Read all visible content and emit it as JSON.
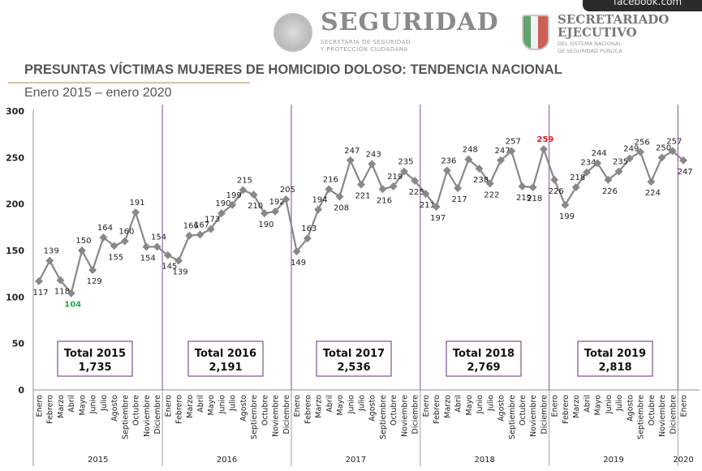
{
  "header": {
    "logo1_title": "SEGURIDAD",
    "logo1_sub1": "SECRETARÍA DE SEGURIDAD",
    "logo1_sub2": "Y PROTECCIÓN CIUDADANA",
    "logo2_title1": "SECRETARIADO",
    "logo2_title2": "EJECUTIVO",
    "logo2_sub1": "DEL SISTEMA NACIONAL",
    "logo2_sub2": "DE SEGURIDAD PÚBLICA",
    "toast": "facebook.com"
  },
  "colors": {
    "line": "#888888",
    "divider": "#9b72b0",
    "min_label": "#2aa84a",
    "max_label": "#e01b24",
    "box_border": "#7a4f94"
  },
  "chart_data": {
    "type": "line",
    "title": "PRESUNTAS VÍCTIMAS MUJERES DE HOMICIDIO DOLOSO: TENDENCIA NACIONAL",
    "subtitle": "Enero 2015 – enero 2020",
    "xlabel": "",
    "ylabel": "",
    "ylim": [
      0,
      300
    ],
    "yticks": [
      0,
      50,
      100,
      150,
      200,
      250,
      300
    ],
    "grid": false,
    "months": [
      "Enero",
      "Febrero",
      "Marzo",
      "Abril",
      "Mayo",
      "Junio",
      "Julio",
      "Agosto",
      "Septiembre",
      "Octubre",
      "Noviembre",
      "Diciembre"
    ],
    "years": [
      {
        "year": "2015",
        "values": [
          117,
          139,
          118,
          104,
          150,
          129,
          164,
          155,
          160,
          191,
          154,
          154
        ],
        "total_label": "Total 2015",
        "total": "1,735"
      },
      {
        "year": "2016",
        "values": [
          145,
          139,
          166,
          167,
          173,
          190,
          199,
          215,
          210,
          190,
          192,
          205
        ],
        "total_label": "Total 2016",
        "total": "2,191"
      },
      {
        "year": "2017",
        "values": [
          149,
          163,
          194,
          216,
          208,
          247,
          221,
          243,
          216,
          219,
          235,
          225
        ],
        "total_label": "Total 2017",
        "total": "2,536"
      },
      {
        "year": "2018",
        "values": [
          211,
          197,
          236,
          217,
          248,
          238,
          222,
          247,
          257,
          219,
          218,
          259
        ],
        "total_label": "Total 2018",
        "total": "2,769"
      },
      {
        "year": "2019",
        "values": [
          226,
          199,
          218,
          234,
          244,
          226,
          235,
          249,
          256,
          224,
          250,
          257
        ],
        "total_label": "Total 2019",
        "total": "2,818"
      },
      {
        "year": "2020",
        "values": [
          247
        ],
        "months": [
          "Enero"
        ]
      }
    ],
    "min_point": {
      "year": "2015",
      "month": "Abril",
      "value": 104
    },
    "max_point": {
      "year": "2018",
      "month": "Diciembre",
      "value": 259
    }
  }
}
